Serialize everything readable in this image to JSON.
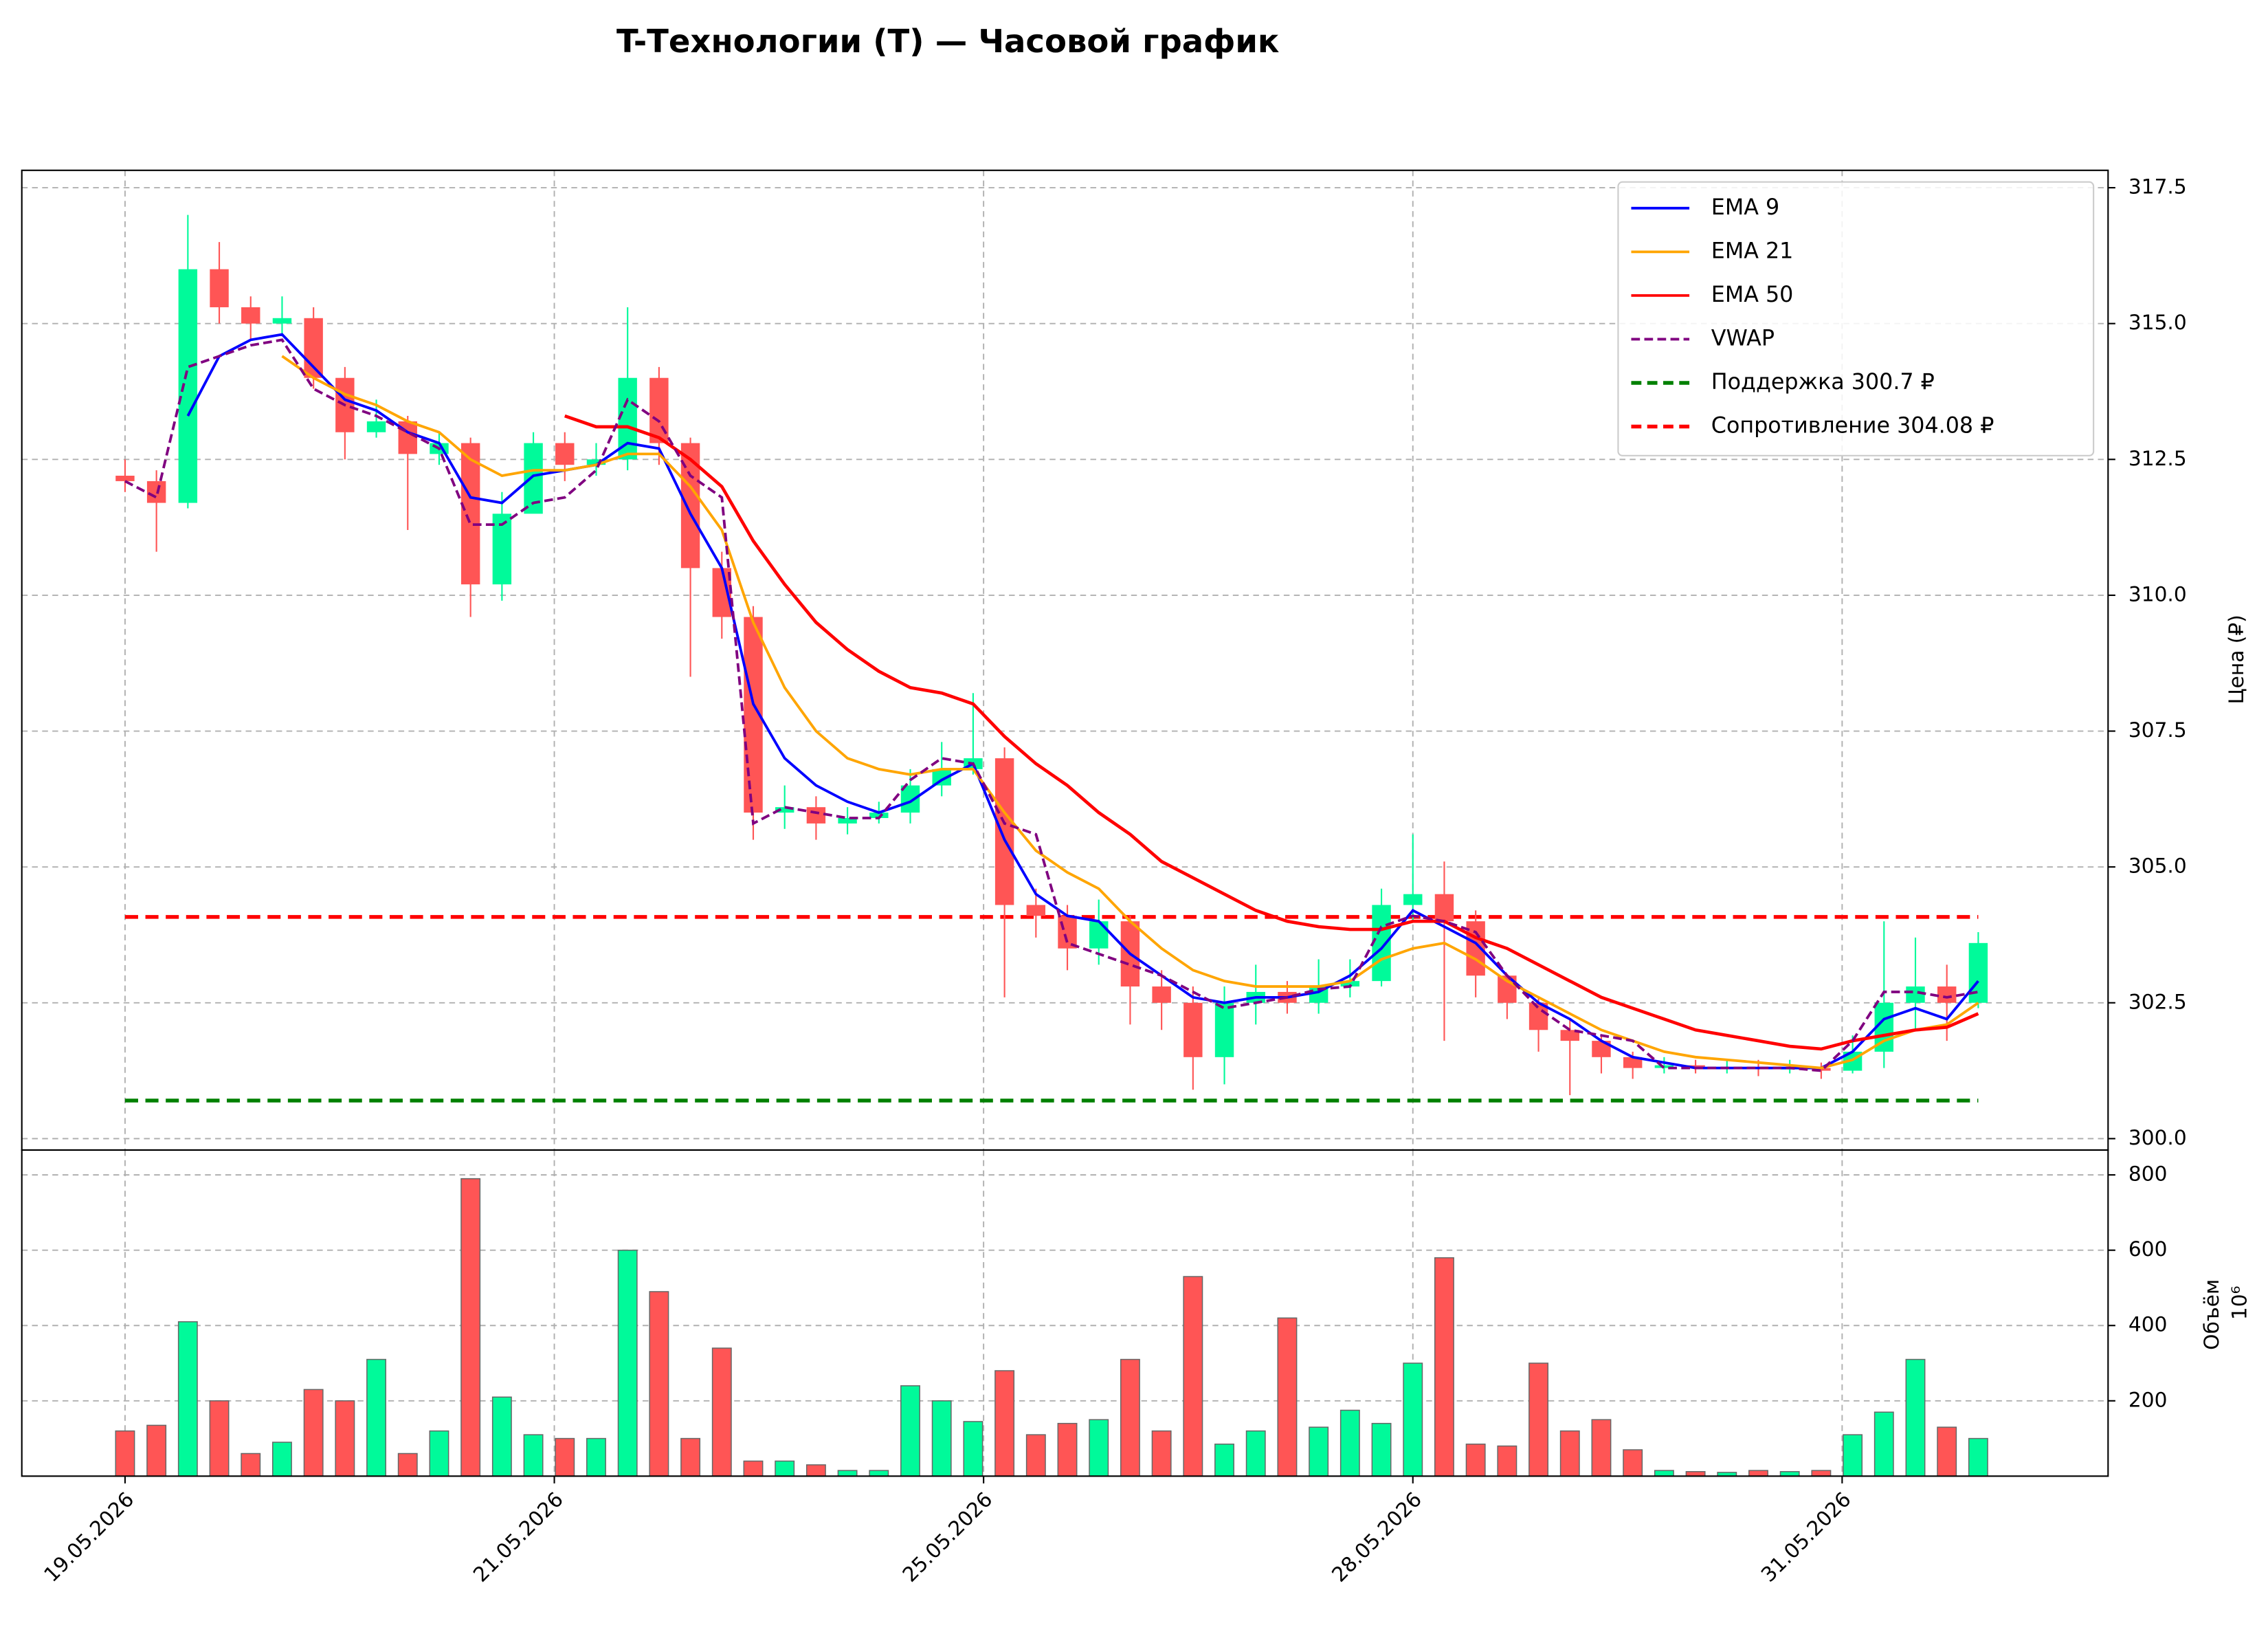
{
  "chart_data": {
    "type": "candlestick",
    "title": "T-Технологии (T) — Часовой график",
    "x": [
      0,
      3,
      6,
      9,
      12,
      15,
      18,
      21,
      24,
      27,
      30,
      33,
      36,
      39,
      42,
      45,
      48,
      51,
      54,
      57,
      60,
      63,
      66,
      69,
      72,
      75,
      78,
      81,
      84,
      87,
      90,
      93,
      96,
      99,
      102,
      105,
      108,
      111,
      114,
      117,
      120,
      123,
      126,
      129,
      132,
      135,
      138,
      141,
      144,
      147,
      150,
      153,
      156,
      159,
      162,
      165,
      168,
      171,
      174,
      177
    ],
    "open": [
      312.2,
      312.1,
      311.7,
      316.0,
      315.3,
      315.0,
      315.1,
      314.0,
      313.0,
      313.2,
      312.6,
      312.8,
      310.2,
      311.5,
      312.8,
      312.4,
      312.5,
      314.0,
      312.8,
      310.5,
      309.6,
      306.0,
      306.1,
      305.8,
      305.9,
      306.0,
      306.5,
      306.8,
      307.0,
      304.3,
      304.1,
      303.5,
      304.0,
      302.8,
      302.5,
      301.5,
      302.5,
      302.7,
      302.5,
      302.8,
      302.9,
      304.3,
      304.5,
      304.0,
      303.0,
      302.5,
      302.0,
      301.8,
      301.5,
      301.3,
      301.35,
      301.3,
      301.32,
      301.28,
      301.3,
      301.25,
      301.6,
      302.5,
      302.8,
      302.5
    ],
    "high": [
      312.5,
      312.3,
      317.0,
      316.5,
      315.5,
      315.5,
      315.3,
      314.2,
      313.6,
      313.3,
      313.0,
      312.9,
      311.9,
      313.0,
      313.0,
      312.8,
      315.3,
      314.2,
      312.9,
      310.8,
      309.8,
      306.5,
      306.3,
      306.1,
      306.2,
      306.8,
      307.3,
      308.2,
      307.2,
      304.6,
      304.3,
      304.4,
      304.1,
      303.1,
      302.8,
      302.8,
      303.2,
      302.9,
      303.3,
      303.3,
      304.6,
      305.6,
      305.1,
      304.2,
      303.0,
      302.6,
      302.2,
      301.9,
      301.6,
      301.5,
      301.45,
      301.45,
      301.45,
      301.45,
      301.4,
      301.9,
      304.0,
      303.7,
      303.2,
      303.8
    ],
    "low": [
      311.9,
      310.8,
      311.6,
      315.0,
      314.7,
      314.8,
      313.8,
      312.5,
      312.9,
      311.2,
      312.4,
      309.6,
      309.9,
      311.6,
      312.1,
      312.2,
      312.3,
      312.4,
      308.5,
      309.2,
      305.5,
      305.7,
      305.5,
      305.6,
      305.8,
      305.8,
      306.3,
      306.7,
      302.6,
      303.7,
      303.1,
      303.2,
      302.1,
      302.0,
      300.9,
      301.0,
      302.1,
      302.3,
      302.3,
      302.6,
      302.8,
      304.0,
      301.8,
      302.6,
      302.2,
      301.6,
      300.8,
      301.2,
      301.1,
      301.2,
      301.2,
      301.2,
      301.15,
      301.2,
      301.1,
      301.2,
      301.3,
      302.0,
      301.8,
      302.4
    ],
    "close": [
      312.1,
      311.7,
      316.0,
      315.3,
      315.0,
      315.1,
      314.0,
      313.0,
      313.2,
      312.6,
      312.8,
      310.2,
      311.5,
      312.8,
      312.4,
      312.5,
      314.0,
      312.8,
      310.5,
      309.6,
      306.0,
      306.1,
      305.8,
      305.9,
      306.0,
      306.5,
      306.8,
      307.0,
      304.3,
      304.1,
      303.5,
      304.0,
      302.8,
      302.5,
      301.5,
      302.5,
      302.7,
      302.5,
      302.8,
      302.9,
      304.3,
      304.5,
      304.0,
      303.0,
      302.5,
      302.0,
      301.8,
      301.5,
      301.3,
      301.35,
      301.3,
      301.32,
      301.28,
      301.3,
      301.25,
      301.6,
      302.5,
      302.8,
      302.5,
      303.6
    ],
    "volume": [
      120,
      135,
      410,
      200,
      60,
      90,
      230,
      200,
      310,
      60,
      120,
      790,
      210,
      110,
      100,
      100,
      600,
      490,
      100,
      340,
      40,
      40,
      30,
      15,
      15,
      240,
      200,
      145,
      280,
      110,
      140,
      150,
      310,
      120,
      530,
      85,
      120,
      420,
      130,
      175,
      140,
      300,
      580,
      85,
      80,
      300,
      120,
      150,
      70,
      15,
      12,
      10,
      15,
      12,
      15,
      110,
      170,
      310,
      130,
      100
    ],
    "up_color": "#00fa9a",
    "down_color": "#ff5555",
    "lines": [
      {
        "name": "EMA 9",
        "color": "#0000ff",
        "dash": false,
        "values": [
          null,
          null,
          313.3,
          314.4,
          314.7,
          314.8,
          314.2,
          313.6,
          313.4,
          313.0,
          312.8,
          311.8,
          311.7,
          312.2,
          312.3,
          312.4,
          312.8,
          312.7,
          311.5,
          310.5,
          308.0,
          307.0,
          306.5,
          306.2,
          306.0,
          306.2,
          306.6,
          306.9,
          305.5,
          304.5,
          304.1,
          304.0,
          303.4,
          303.0,
          302.6,
          302.5,
          302.6,
          302.6,
          302.7,
          303.0,
          303.5,
          304.2,
          303.9,
          303.6,
          303.0,
          302.5,
          302.2,
          301.8,
          301.5,
          301.4,
          301.3,
          301.3,
          301.3,
          301.3,
          301.3,
          301.6,
          302.2,
          302.4,
          302.2,
          302.9
        ]
      },
      {
        "name": "EMA 21",
        "color": "#ffa500",
        "dash": false,
        "values": [
          null,
          null,
          null,
          null,
          null,
          314.4,
          314.0,
          313.7,
          313.5,
          313.2,
          313.0,
          312.5,
          312.2,
          312.3,
          312.3,
          312.4,
          312.6,
          312.6,
          312.0,
          311.2,
          309.5,
          308.3,
          307.5,
          307.0,
          306.8,
          306.7,
          306.8,
          306.8,
          306.0,
          305.3,
          304.9,
          304.6,
          304.0,
          303.5,
          303.1,
          302.9,
          302.8,
          302.8,
          302.8,
          302.9,
          303.3,
          303.5,
          303.6,
          303.3,
          302.9,
          302.6,
          302.3,
          302.0,
          301.8,
          301.6,
          301.5,
          301.45,
          301.4,
          301.35,
          301.3,
          301.45,
          301.8,
          302.0,
          302.1,
          302.5
        ]
      },
      {
        "name": "EMA 50",
        "color": "#ff0000",
        "dash": false,
        "values": [
          null,
          null,
          null,
          null,
          null,
          null,
          null,
          null,
          null,
          null,
          null,
          null,
          null,
          null,
          313.3,
          313.1,
          313.1,
          312.9,
          312.5,
          312.0,
          311.0,
          310.2,
          309.5,
          309.0,
          308.6,
          308.3,
          308.2,
          308.0,
          307.4,
          306.9,
          306.5,
          306.0,
          305.6,
          305.1,
          304.8,
          304.5,
          304.2,
          304.0,
          303.9,
          303.85,
          303.85,
          304.0,
          304.0,
          303.7,
          303.5,
          303.2,
          302.9,
          302.6,
          302.4,
          302.2,
          302.0,
          301.9,
          301.8,
          301.7,
          301.65,
          301.8,
          301.9,
          302.0,
          302.05,
          302.3
        ]
      },
      {
        "name": "VWAP",
        "color": "#800080",
        "dash": true,
        "values": [
          312.1,
          311.8,
          314.2,
          314.4,
          314.6,
          314.7,
          313.8,
          313.5,
          313.3,
          313.0,
          312.7,
          311.3,
          311.3,
          311.7,
          311.8,
          312.3,
          313.6,
          313.2,
          312.2,
          311.8,
          305.8,
          306.1,
          306.0,
          305.9,
          305.9,
          306.6,
          307.0,
          306.9,
          305.8,
          305.6,
          303.6,
          303.4,
          303.2,
          303.0,
          302.7,
          302.4,
          302.5,
          302.6,
          302.75,
          302.8,
          303.9,
          304.1,
          304.0,
          303.8,
          303.0,
          302.4,
          302.0,
          301.9,
          301.8,
          301.3,
          301.3,
          301.3,
          301.3,
          301.3,
          301.25,
          301.8,
          302.7,
          302.7,
          302.6,
          302.7
        ]
      }
    ],
    "levels": [
      {
        "name": "Поддержка 300.7 ₽",
        "value": 300.7,
        "color": "#008000"
      },
      {
        "name": "Сопротивление 304.08 ₽",
        "value": 304.08,
        "color": "#ff0000"
      }
    ],
    "legend": "upper right",
    "grid": true,
    "xlim": [
      -9.86,
      189.4
    ],
    "xticks": [
      {
        "value": 0,
        "label": "19.05.2026"
      },
      {
        "value": 41,
        "label": "21.05.2026"
      },
      {
        "value": 82,
        "label": "25.05.2026"
      },
      {
        "value": 123,
        "label": "28.05.2026"
      },
      {
        "value": 164,
        "label": "31.05.2026"
      }
    ],
    "ylabel": "Цена (₽)",
    "ylim": [
      299.79,
      317.82
    ],
    "yticks": [
      {
        "value": 300,
        "label": "300.0"
      },
      302.5,
      {
        "value": 305,
        "label": "305.0"
      },
      307.5,
      {
        "value": 310,
        "label": "310.0"
      },
      312.5,
      {
        "value": 315,
        "label": "315.0"
      },
      317.5
    ],
    "volume_panel": {
      "ylabel": "Объём",
      "offset": "10⁶",
      "ylim": [
        0,
        866
      ],
      "yticks": [
        200,
        400,
        600,
        800
      ]
    }
  }
}
